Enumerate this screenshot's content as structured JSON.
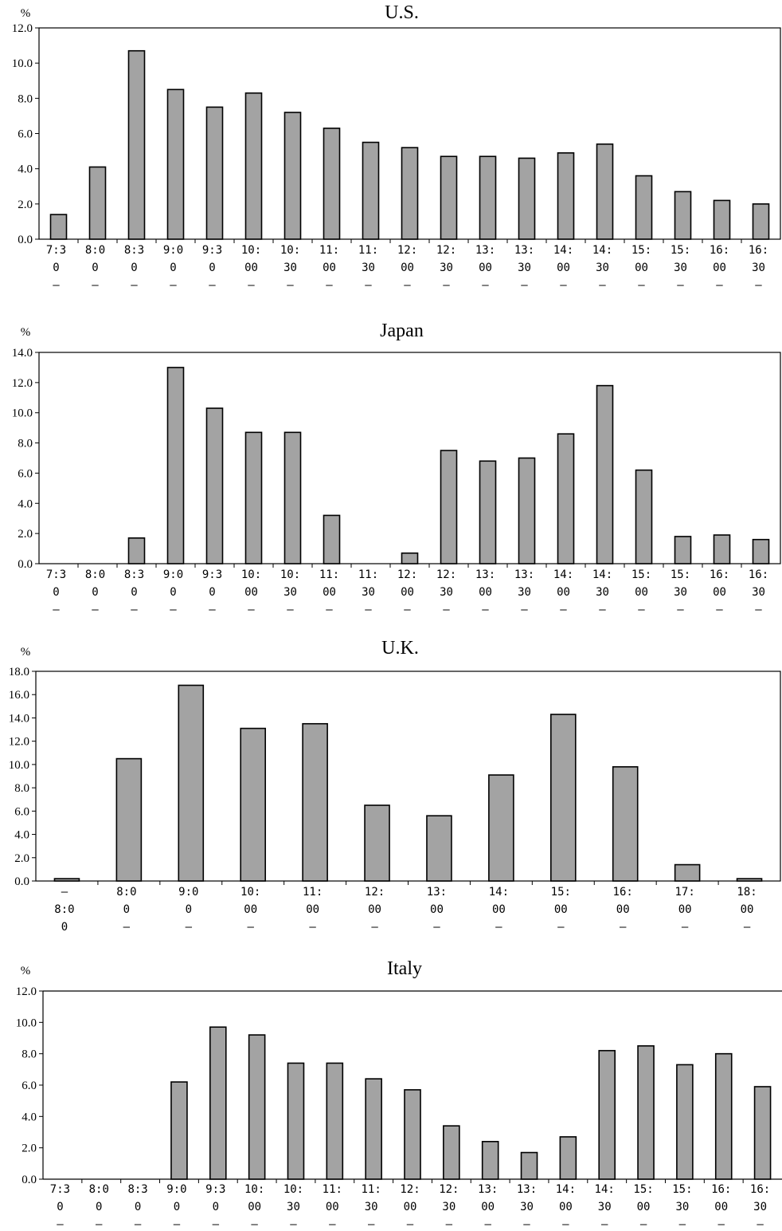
{
  "chart_data": [
    {
      "type": "bar",
      "title": "U.S.",
      "unit_label": "%",
      "ylim": [
        0,
        12
      ],
      "yticks": [
        "0.0",
        "2.0",
        "4.0",
        "6.0",
        "8.0",
        "10.0",
        "12.0"
      ],
      "categories": [
        [
          "7:3",
          "0",
          "–"
        ],
        [
          "8:0",
          "0",
          "–"
        ],
        [
          "8:3",
          "0",
          "–"
        ],
        [
          "9:0",
          "0",
          "–"
        ],
        [
          "9:3",
          "0",
          "–"
        ],
        [
          "10:",
          "00",
          "–"
        ],
        [
          "10:",
          "30",
          "–"
        ],
        [
          "11:",
          "00",
          "–"
        ],
        [
          "11:",
          "30",
          "–"
        ],
        [
          "12:",
          "00",
          "–"
        ],
        [
          "12:",
          "30",
          "–"
        ],
        [
          "13:",
          "00",
          "–"
        ],
        [
          "13:",
          "30",
          "–"
        ],
        [
          "14:",
          "00",
          "–"
        ],
        [
          "14:",
          "30",
          "–"
        ],
        [
          "15:",
          "00",
          "–"
        ],
        [
          "15:",
          "30",
          "–"
        ],
        [
          "16:",
          "00",
          "–"
        ],
        [
          "16:",
          "30",
          "–"
        ]
      ],
      "values": [
        1.4,
        4.1,
        10.7,
        8.5,
        7.5,
        8.3,
        7.2,
        6.3,
        5.5,
        5.2,
        4.7,
        4.7,
        4.6,
        4.9,
        5.4,
        3.6,
        2.7,
        2.2,
        2.0
      ],
      "grid": false,
      "border": "full"
    },
    {
      "type": "bar",
      "title": "Japan",
      "unit_label": "%",
      "ylim": [
        0,
        14
      ],
      "yticks": [
        "0.0",
        "2.0",
        "4.0",
        "6.0",
        "8.0",
        "10.0",
        "12.0",
        "14.0"
      ],
      "categories": [
        [
          "7:3",
          "0",
          "–"
        ],
        [
          "8:0",
          "0",
          "–"
        ],
        [
          "8:3",
          "0",
          "–"
        ],
        [
          "9:0",
          "0",
          "–"
        ],
        [
          "9:3",
          "0",
          "–"
        ],
        [
          "10:",
          "00",
          "–"
        ],
        [
          "10:",
          "30",
          "–"
        ],
        [
          "11:",
          "00",
          "–"
        ],
        [
          "11:",
          "30",
          "–"
        ],
        [
          "12:",
          "00",
          "–"
        ],
        [
          "12:",
          "30",
          "–"
        ],
        [
          "13:",
          "00",
          "–"
        ],
        [
          "13:",
          "30",
          "–"
        ],
        [
          "14:",
          "00",
          "–"
        ],
        [
          "14:",
          "30",
          "–"
        ],
        [
          "15:",
          "00",
          "–"
        ],
        [
          "15:",
          "30",
          "–"
        ],
        [
          "16:",
          "00",
          "–"
        ],
        [
          "16:",
          "30",
          "–"
        ]
      ],
      "values": [
        0,
        0,
        1.7,
        13.0,
        10.3,
        8.7,
        8.7,
        3.2,
        0,
        0.7,
        7.5,
        6.8,
        7.0,
        8.6,
        11.8,
        6.2,
        1.8,
        1.9,
        1.6
      ],
      "grid": false,
      "border": "full"
    },
    {
      "type": "bar",
      "title": "U.K.",
      "unit_label": "%",
      "ylim": [
        0,
        18
      ],
      "yticks": [
        "0.0",
        "2.0",
        "4.0",
        "6.0",
        "8.0",
        "10.0",
        "12.0",
        "14.0",
        "16.0",
        "18.0"
      ],
      "categories": [
        [
          "–",
          "8:0",
          "0"
        ],
        [
          "8:0",
          "0",
          "–"
        ],
        [
          "9:0",
          "0",
          "–"
        ],
        [
          "10:",
          "00",
          "–"
        ],
        [
          "11:",
          "00",
          "–"
        ],
        [
          "12:",
          "00",
          "–"
        ],
        [
          "13:",
          "00",
          "–"
        ],
        [
          "14:",
          "00",
          "–"
        ],
        [
          "15:",
          "00",
          "–"
        ],
        [
          "16:",
          "00",
          "–"
        ],
        [
          "17:",
          "00",
          "–"
        ],
        [
          "18:",
          "00",
          "–"
        ]
      ],
      "values": [
        0.2,
        10.5,
        16.8,
        13.1,
        13.5,
        6.5,
        5.6,
        9.1,
        14.3,
        9.8,
        1.4,
        0.2
      ],
      "grid": false,
      "border": "full"
    },
    {
      "type": "bar",
      "title": "Italy",
      "unit_label": "%",
      "ylim": [
        0,
        12
      ],
      "yticks": [
        "0.0",
        "2.0",
        "4.0",
        "6.0",
        "8.0",
        "10.0",
        "12.0"
      ],
      "categories": [
        [
          "7:3",
          "0",
          "–"
        ],
        [
          "8:0",
          "0",
          "–"
        ],
        [
          "8:3",
          "0",
          "–"
        ],
        [
          "9:0",
          "0",
          "–"
        ],
        [
          "9:3",
          "0",
          "–"
        ],
        [
          "10:",
          "00",
          "–"
        ],
        [
          "10:",
          "30",
          "–"
        ],
        [
          "11:",
          "00",
          "–"
        ],
        [
          "11:",
          "30",
          "–"
        ],
        [
          "12:",
          "00",
          "–"
        ],
        [
          "12:",
          "30",
          "–"
        ],
        [
          "13:",
          "00",
          "–"
        ],
        [
          "13:",
          "30",
          "–"
        ],
        [
          "14:",
          "00",
          "–"
        ],
        [
          "14:",
          "30",
          "–"
        ],
        [
          "15:",
          "00",
          "–"
        ],
        [
          "15:",
          "30",
          "–"
        ],
        [
          "16:",
          "00",
          "–"
        ],
        [
          "16:",
          "30",
          "–"
        ]
      ],
      "values": [
        0,
        0,
        0,
        6.2,
        9.7,
        9.2,
        7.4,
        7.4,
        6.4,
        5.7,
        3.4,
        2.4,
        1.7,
        2.7,
        8.2,
        8.5,
        7.3,
        8.0,
        5.9
      ],
      "grid": false,
      "border": "top-left"
    }
  ]
}
